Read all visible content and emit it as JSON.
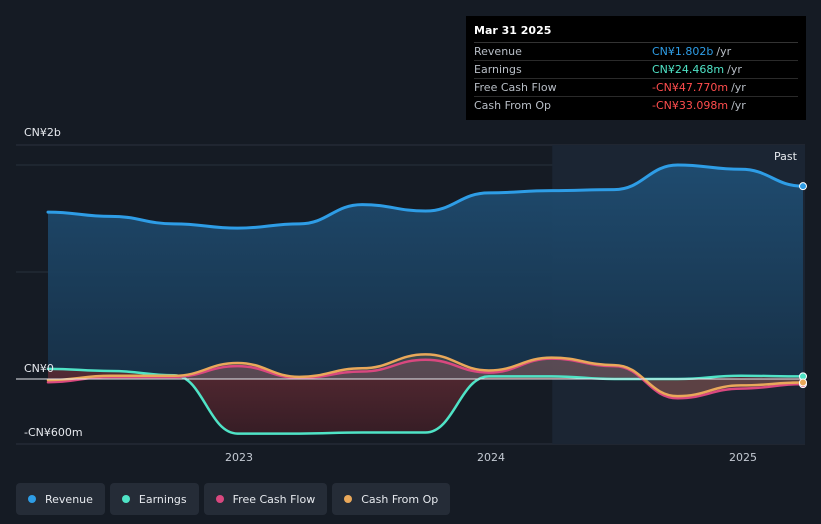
{
  "tooltip": {
    "date": "Mar 31 2025",
    "rows": [
      {
        "name": "Revenue",
        "value": "CN¥1.802b",
        "unit": "/yr",
        "color": "#2e9de6"
      },
      {
        "name": "Earnings",
        "value": "CN¥24.468m",
        "unit": "/yr",
        "color": "#4fe3c6"
      },
      {
        "name": "Free Cash Flow",
        "value": "-CN¥47.770m",
        "unit": "/yr",
        "color": "#ff4d4d"
      },
      {
        "name": "Cash From Op",
        "value": "-CN¥33.098m",
        "unit": "/yr",
        "color": "#ff4d4d"
      }
    ]
  },
  "past_label": "Past",
  "legend": [
    {
      "label": "Revenue",
      "color": "#2e9de6"
    },
    {
      "label": "Earnings",
      "color": "#4fe3c6"
    },
    {
      "label": "Free Cash Flow",
      "color": "#d9487f"
    },
    {
      "label": "Cash From Op",
      "color": "#e9a85a"
    }
  ],
  "chart_data": {
    "type": "area",
    "y_unit": "CN¥ millions",
    "y_tick_labels": [
      "CN¥2b",
      "CN¥0",
      "-CN¥600m"
    ],
    "ylim": [
      -600,
      2000
    ],
    "x_tick_labels": [
      "2023",
      "2024",
      "2025"
    ],
    "x_range": [
      "2022-03-31",
      "2025-03-31"
    ],
    "past_start": "2024-04-01",
    "grid": true,
    "series": [
      {
        "name": "Revenue",
        "color": "#2e9de6",
        "x": [
          "2022-03-31",
          "2022-06-30",
          "2022-09-30",
          "2022-12-31",
          "2023-03-31",
          "2023-06-30",
          "2023-09-30",
          "2023-12-31",
          "2024-03-31",
          "2024-06-30",
          "2024-09-30",
          "2024-12-31",
          "2025-03-31"
        ],
        "values": [
          1560,
          1520,
          1450,
          1410,
          1450,
          1630,
          1570,
          1740,
          1760,
          1770,
          2000,
          1960,
          1802
        ]
      },
      {
        "name": "Earnings",
        "color": "#4fe3c6",
        "x": [
          "2022-03-31",
          "2022-06-30",
          "2022-09-30",
          "2022-12-31",
          "2023-03-31",
          "2023-06-30",
          "2023-09-30",
          "2023-12-31",
          "2024-03-31",
          "2024-06-30",
          "2024-09-30",
          "2024-12-31",
          "2025-03-31"
        ],
        "values": [
          95,
          75,
          35,
          -510,
          -510,
          -500,
          -500,
          25,
          25,
          0,
          0,
          30,
          24.468
        ]
      },
      {
        "name": "Free Cash Flow",
        "color": "#d9487f",
        "x": [
          "2022-03-31",
          "2022-06-30",
          "2022-09-30",
          "2022-12-31",
          "2023-03-31",
          "2023-06-30",
          "2023-09-30",
          "2023-12-31",
          "2024-03-31",
          "2024-06-30",
          "2024-09-30",
          "2024-12-31",
          "2025-03-31"
        ],
        "values": [
          -30,
          20,
          20,
          120,
          10,
          70,
          180,
          60,
          190,
          120,
          -180,
          -90,
          -47.77
        ]
      },
      {
        "name": "Cash From Op",
        "color": "#e9a85a",
        "x": [
          "2022-03-31",
          "2022-06-30",
          "2022-09-30",
          "2022-12-31",
          "2023-03-31",
          "2023-06-30",
          "2023-09-30",
          "2023-12-31",
          "2024-03-31",
          "2024-06-30",
          "2024-09-30",
          "2024-12-31",
          "2025-03-31"
        ],
        "values": [
          -10,
          30,
          30,
          150,
          20,
          100,
          230,
          80,
          200,
          130,
          -160,
          -60,
          -33.098
        ]
      }
    ]
  }
}
